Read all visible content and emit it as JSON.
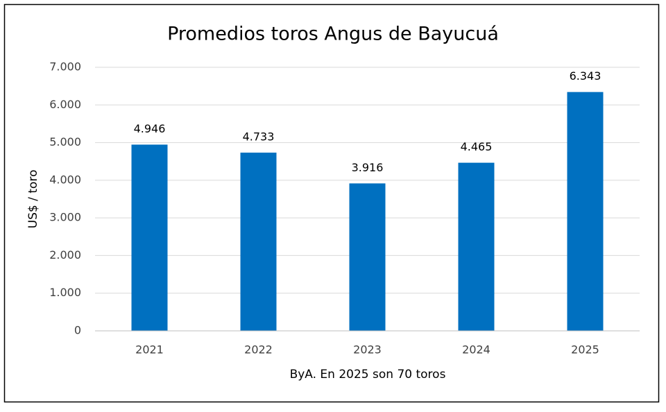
{
  "chart_data": {
    "type": "bar",
    "title": "Promedios toros Angus de Bayucuá",
    "x_label": "ByA. En 2025 son 70 toros",
    "y_label": "US$ / toro",
    "categories": [
      "2021",
      "2022",
      "2023",
      "2024",
      "2025"
    ],
    "values": [
      4946,
      4733,
      3916,
      4465,
      6343
    ],
    "value_labels": [
      "4.946",
      "4.733",
      "3.916",
      "4.465",
      "6.343"
    ],
    "color": "#0070c0",
    "ylim": [
      0,
      7000
    ],
    "yticks": [
      0,
      {
        "value": 1000,
        "label": "1.000"
      },
      {
        "value": 2000,
        "label": "2.000"
      },
      {
        "value": 3000,
        "label": "3.000"
      },
      {
        "value": 4000,
        "label": "4.000"
      },
      {
        "value": 5000,
        "label": "5.000"
      },
      {
        "value": 6000,
        "label": "6.000"
      },
      {
        "value": 7000,
        "label": "7.000"
      }
    ],
    "grid": true
  }
}
